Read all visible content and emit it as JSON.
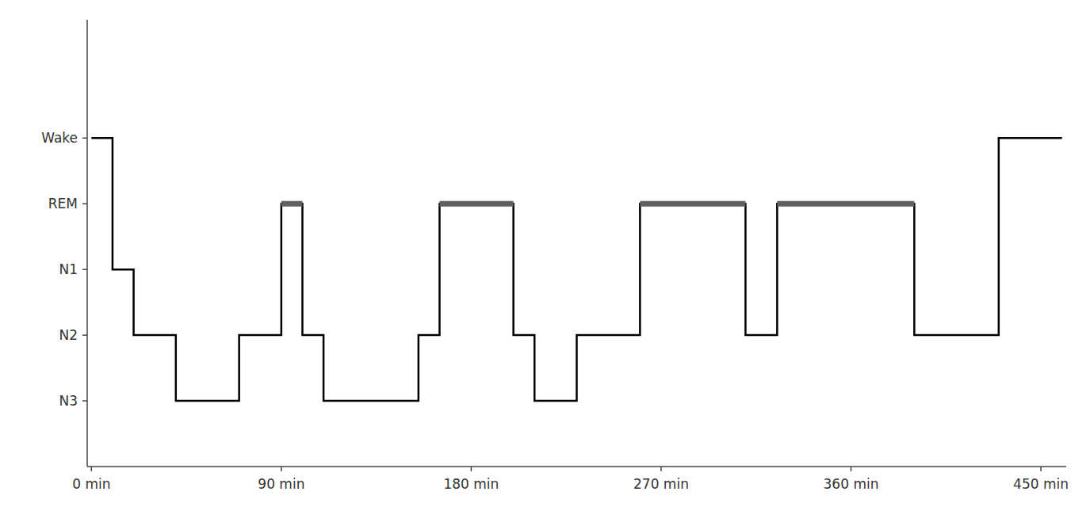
{
  "chart_data": {
    "type": "line",
    "xlim": [
      -2,
      462
    ],
    "ylim": [
      0,
      6.8
    ],
    "xticks": [
      {
        "value": 0,
        "label": "0 min"
      },
      {
        "value": 90,
        "label": "90 min"
      },
      {
        "value": 180,
        "label": "180 min"
      },
      {
        "value": 270,
        "label": "270 min"
      },
      {
        "value": 360,
        "label": "360 min"
      },
      {
        "value": 450,
        "label": "450 min"
      }
    ],
    "yticks": [
      {
        "value": 5,
        "label": "Wake"
      },
      {
        "value": 4,
        "label": "REM"
      },
      {
        "value": 3,
        "label": "N1"
      },
      {
        "value": 2,
        "label": "N2"
      },
      {
        "value": 1,
        "label": "N3"
      }
    ],
    "grid": false,
    "series": [
      {
        "type": "step",
        "color": "#000000",
        "x": [
          0,
          10,
          20,
          40,
          70,
          90,
          100,
          110,
          155,
          165,
          200,
          210,
          230,
          260,
          310,
          325,
          390,
          430,
          460
        ],
        "values": [
          5,
          3,
          2,
          1,
          2,
          4,
          2,
          1,
          2,
          4,
          2,
          1,
          2,
          4,
          2,
          4,
          2,
          5,
          5
        ]
      },
      {
        "type": "segment",
        "color": "#606060",
        "x_start": [
          90,
          165,
          260,
          325
        ],
        "x_end": [
          100,
          200,
          310,
          390
        ],
        "values": [
          4,
          4,
          4,
          4
        ]
      }
    ]
  }
}
